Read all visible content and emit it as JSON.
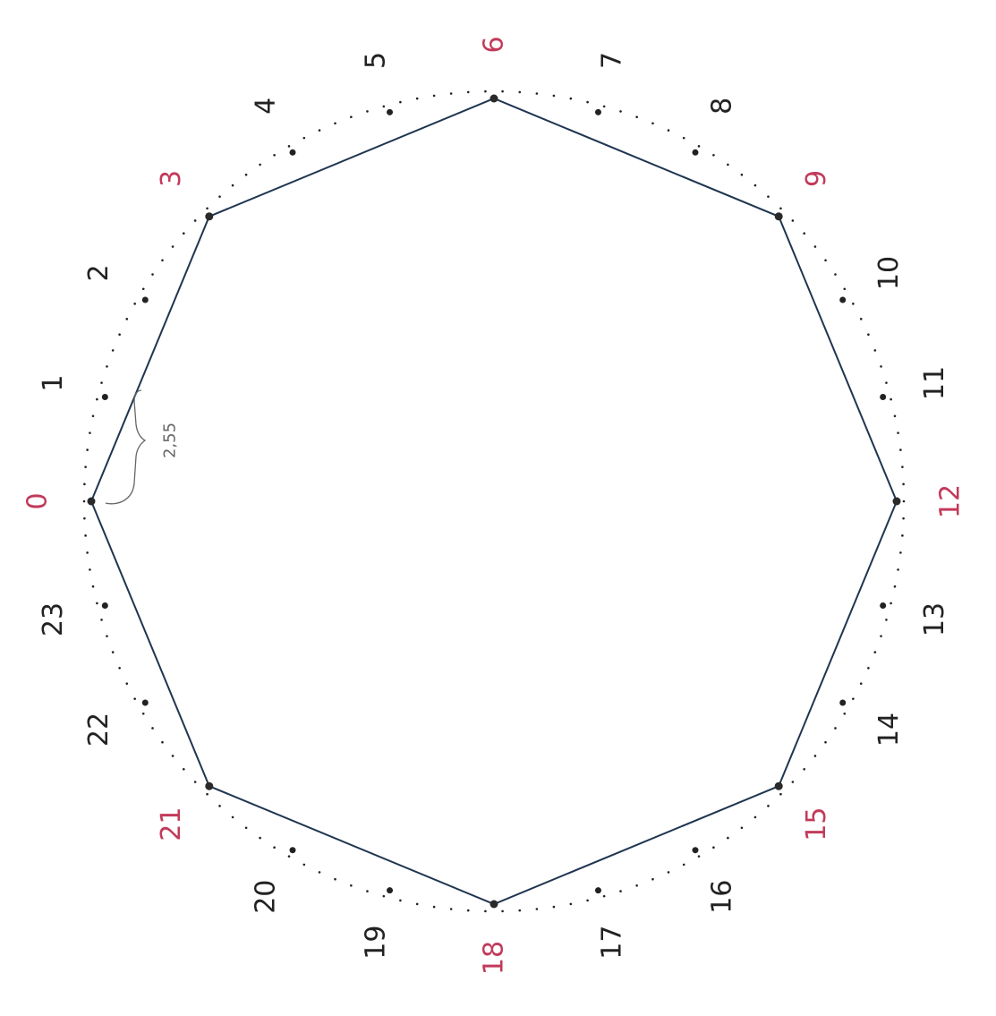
{
  "diagram": {
    "labels": [
      "0",
      "1",
      "2",
      "3",
      "4",
      "5",
      "6",
      "7",
      "8",
      "9",
      "10",
      "11",
      "12",
      "13",
      "14",
      "15",
      "16",
      "17",
      "18",
      "19",
      "20",
      "21",
      "22",
      "23"
    ],
    "highlighted_labels": [
      "0",
      "3",
      "6",
      "9",
      "12",
      "15",
      "18",
      "21"
    ],
    "polygon_vertices": [
      "0",
      "3",
      "6",
      "9",
      "12",
      "15",
      "18",
      "21"
    ],
    "annotation": "2,55",
    "colors": {
      "label": "#222222",
      "highlight": "#c23a5a",
      "polygon": "#1f3550",
      "dots": "#222222",
      "annotation": "#666666"
    }
  }
}
